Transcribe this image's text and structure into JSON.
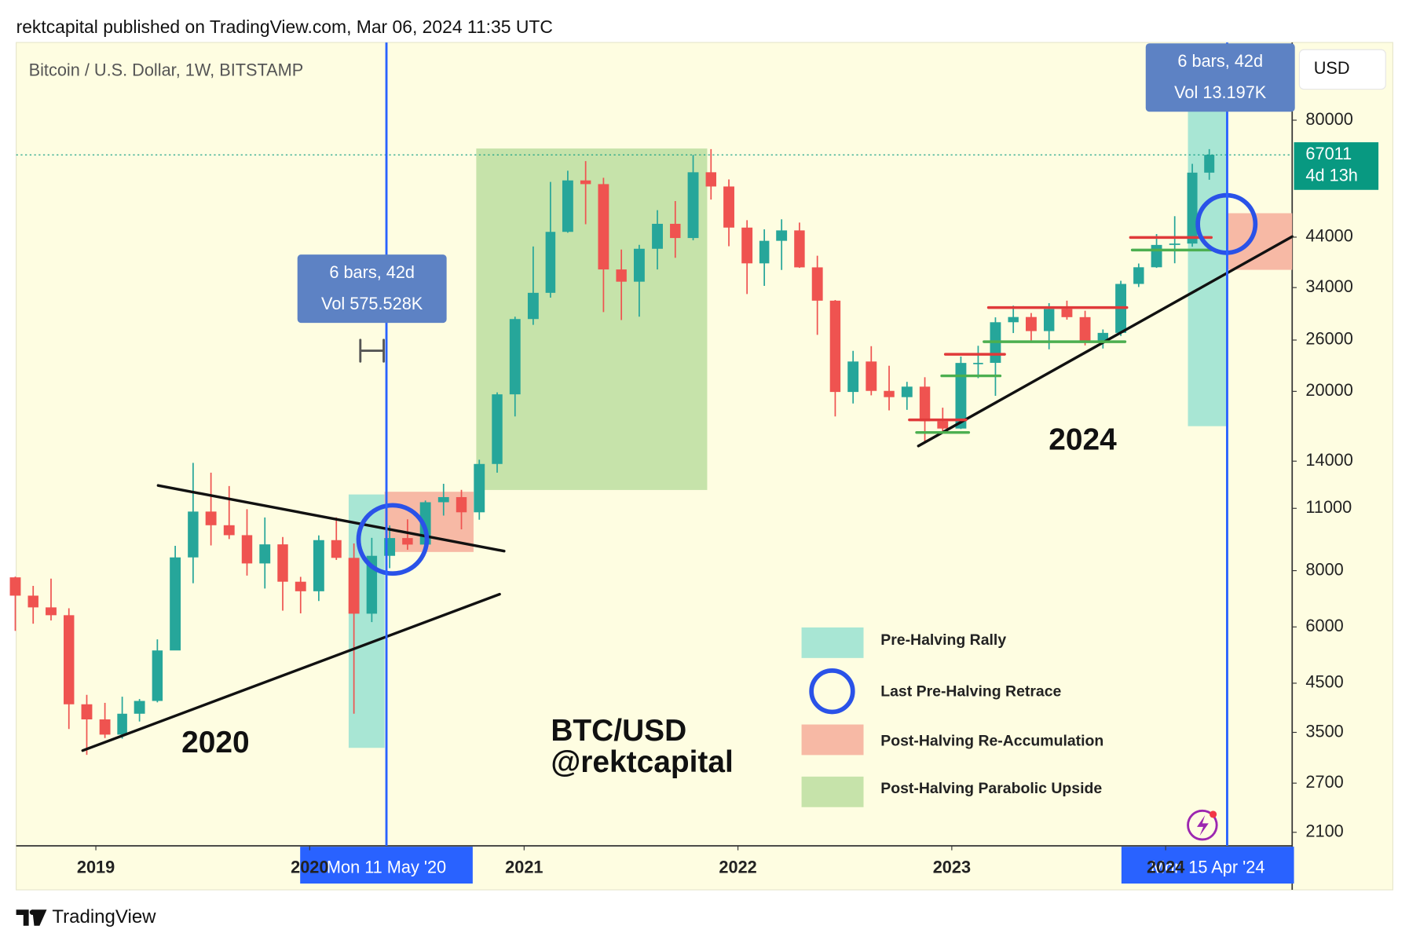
{
  "header": "rektcapital published on TradingView.com, Mar 06, 2024 11:35 UTC",
  "footer": "TradingView",
  "chart_data": {
    "type": "candlestick",
    "title": "Bitcoin / U.S. Dollar, 1W, BITSTAMP",
    "currency": "USD",
    "log_scale": true,
    "up_color": "#26a69a",
    "down_color": "#ef5350",
    "xlim": [
      "2018-08-18",
      "2024-08-04"
    ],
    "xticks": [
      {
        "value": "2019-01-01",
        "label": "2019"
      },
      {
        "value": "2020-01-01",
        "label": "2020"
      },
      {
        "value": "2021-01-01",
        "label": "2021"
      },
      {
        "value": "2022-01-01",
        "label": "2022"
      },
      {
        "value": "2023-01-01",
        "label": "2023"
      },
      {
        "value": "2024-01-01",
        "label": "2024"
      }
    ],
    "ylim": [
      1960,
      119000
    ],
    "yticks": [
      2100,
      2700,
      3500,
      4500,
      6000,
      8000,
      11000,
      14000,
      20000,
      26000,
      34000,
      44000,
      80000
    ],
    "x": [
      "2018-08-01",
      "2018-09-01",
      "2018-10-01",
      "2018-11-01",
      "2018-12-01",
      "2019-01-01",
      "2019-02-01",
      "2019-03-01",
      "2019-04-01",
      "2019-05-01",
      "2019-06-01",
      "2019-07-01",
      "2019-08-01",
      "2019-09-01",
      "2019-10-01",
      "2019-11-01",
      "2019-12-01",
      "2020-01-01",
      "2020-02-01",
      "2020-03-01",
      "2020-04-01",
      "2020-05-01",
      "2020-06-01",
      "2020-07-01",
      "2020-08-01",
      "2020-09-01",
      "2020-10-01",
      "2020-11-01",
      "2020-12-01",
      "2021-01-01",
      "2021-02-01",
      "2021-03-01",
      "2021-04-01",
      "2021-05-01",
      "2021-06-01",
      "2021-07-01",
      "2021-08-01",
      "2021-09-01",
      "2021-10-01",
      "2021-11-01",
      "2021-12-01",
      "2022-01-01",
      "2022-02-01",
      "2022-03-01",
      "2022-04-01",
      "2022-05-01",
      "2022-06-01",
      "2022-07-01",
      "2022-08-01",
      "2022-09-01",
      "2022-10-01",
      "2022-11-01",
      "2022-12-01",
      "2023-01-01",
      "2023-02-01",
      "2023-03-01",
      "2023-04-01",
      "2023-05-01",
      "2023-06-01",
      "2023-07-01",
      "2023-08-01",
      "2023-09-01",
      "2023-10-01",
      "2023-11-01",
      "2023-12-01",
      "2024-01-01",
      "2024-02-01",
      "2024-03-01"
    ],
    "open": [
      7730,
      7040,
      6630,
      6370,
      4040,
      3740,
      3460,
      3850,
      4110,
      5320,
      8560,
      10820,
      10090,
      9590,
      8300,
      9150,
      7560,
      7200,
      9350,
      8540,
      6420,
      8630,
      9450,
      9140,
      11350,
      11650,
      10780,
      13800,
      19700,
      28950,
      33100,
      45200,
      58800,
      57700,
      37300,
      35040,
      41460,
      47100,
      43800,
      61300,
      57000,
      46200,
      38480,
      43180,
      45540,
      37700,
      31800,
      19940,
      23300,
      20050,
      19420,
      20490,
      17170,
      16540,
      23130,
      23140,
      28480,
      29250,
      27220,
      30470,
      29230,
      25940,
      26970,
      34640,
      37720,
      42280,
      42580,
      61180
    ],
    "high": [
      7760,
      7400,
      7680,
      6600,
      4240,
      4070,
      4200,
      4150,
      5630,
      9080,
      13880,
      13200,
      12330,
      10950,
      10500,
      9500,
      7750,
      9580,
      10500,
      9190,
      9460,
      10080,
      10400,
      11450,
      12470,
      12090,
      14100,
      19900,
      29300,
      41950,
      58350,
      61780,
      64900,
      59600,
      41300,
      42300,
      50500,
      52900,
      67000,
      69000,
      59100,
      47990,
      45800,
      48200,
      47400,
      40000,
      31900,
      24600,
      25200,
      22800,
      21000,
      21500,
      18400,
      23900,
      25250,
      29200,
      31000,
      29850,
      31400,
      31800,
      30200,
      27450,
      35200,
      38450,
      44700,
      48970,
      64000,
      69000
    ],
    "low": [
      5880,
      6100,
      6200,
      3560,
      3120,
      3400,
      3390,
      3700,
      4080,
      5330,
      7500,
      9100,
      9400,
      7800,
      7300,
      6520,
      6430,
      6850,
      8450,
      3850,
      6150,
      8100,
      8900,
      8900,
      10600,
      9880,
      10380,
      13200,
      17600,
      28100,
      32300,
      45000,
      47000,
      30000,
      28800,
      29300,
      37300,
      39600,
      43300,
      53300,
      42000,
      32900,
      34300,
      37200,
      37600,
      26700,
      17600,
      18800,
      19600,
      18150,
      18200,
      15480,
      16300,
      16500,
      21400,
      19550,
      26950,
      25800,
      24800,
      28860,
      25300,
      24900,
      26550,
      34100,
      37600,
      38500,
      41900,
      59000
    ],
    "close": [
      7040,
      6630,
      6370,
      4040,
      3740,
      3460,
      3850,
      4110,
      5320,
      8560,
      10820,
      10090,
      9590,
      8300,
      9150,
      7560,
      7200,
      9350,
      8540,
      6420,
      8630,
      9450,
      9140,
      11350,
      11650,
      10780,
      13800,
      19700,
      28950,
      33100,
      45200,
      58800,
      57700,
      37300,
      35040,
      41460,
      47100,
      43800,
      61300,
      57000,
      46200,
      38480,
      43180,
      45540,
      37700,
      31800,
      19940,
      23300,
      20050,
      19420,
      20490,
      17170,
      16540,
      23130,
      23140,
      28480,
      29250,
      27220,
      30470,
      29230,
      25940,
      26970,
      34640,
      37720,
      42280,
      42580,
      61180,
      67011
    ],
    "last_price": 67011,
    "countdown": "4d 13h",
    "crosshairs": [
      {
        "date": "2020-05-11",
        "label": "Mon 11 May '20",
        "bars": "6 bars, 42d",
        "volume": "Vol 575.528K"
      },
      {
        "date": "2024-04-15",
        "label": "Mon 15 Apr '24",
        "bars": "6 bars, 42d",
        "volume": "Vol 13.197K"
      }
    ],
    "annotations": [
      "2020",
      "2024",
      "BTC/USD",
      "@rektcapital"
    ],
    "legend": [
      "Pre-Halving Rally",
      "Last Pre-Halving Retrace",
      "Post-Halving Re-Accumulation",
      "Post-Halving Parabolic Upside"
    ]
  }
}
